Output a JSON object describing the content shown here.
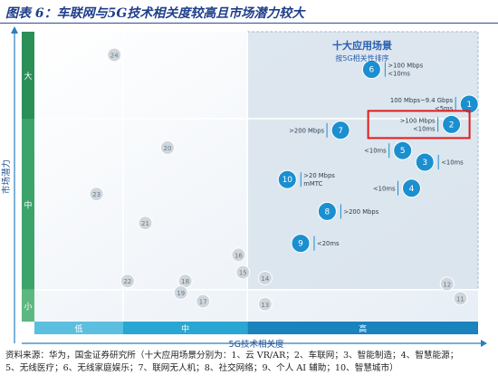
{
  "page": {
    "title": "图表 6：车联网与5G技术相关度较高且市场潜力较大",
    "source_line1": "资料来源：华为，国金证券研究所（十大应用场景分别为：1、云 VR/AR；2、车联网；3、智能制造；4、智慧能源；",
    "source_line2": "5、无线医疗；6、无线家庭娱乐；7、联网无人机；8、社交网络；9、个人 AI 辅助；10、智慧城市）"
  },
  "colors": {
    "bubble": "#1b8fd0",
    "bubble_gray": "#cfd6dc",
    "grid": "#ffffff",
    "axis_band_low": "#5cbfe0",
    "axis_band_mid": "#2aa6d2",
    "axis_band_high": "#1a82bd",
    "y_band_low": "#5cb880",
    "y_band_mid": "#3ca46a",
    "y_band_high": "#2b8f58",
    "highlight_box": "#e31b1b",
    "quadrant_bg": "#d8e3ec"
  },
  "chart_data": {
    "type": "scatter",
    "title": "十大应用场景",
    "subtitle": "按5G相关性排序",
    "xlabel": "5G技术相关度",
    "ylabel": "市场潜力",
    "x_categories": [
      "低",
      "中",
      "高"
    ],
    "y_categories": [
      "小",
      "中",
      "大"
    ],
    "xlim": [
      0,
      10
    ],
    "ylim": [
      0,
      10
    ],
    "highlight_point": "2",
    "points": [
      {
        "id": "1",
        "x": 9.8,
        "y": 7.5,
        "label": "100 Mbps~9.4 Gbps <5ms",
        "top10": true
      },
      {
        "id": "2",
        "x": 9.4,
        "y": 6.8,
        "label": ">100 Mbps <10ms",
        "top10": true
      },
      {
        "id": "3",
        "x": 8.8,
        "y": 5.5,
        "label": "<10ms",
        "top10": true
      },
      {
        "id": "4",
        "x": 8.5,
        "y": 4.6,
        "label": "<10ms",
        "top10": true
      },
      {
        "id": "5",
        "x": 8.3,
        "y": 5.9,
        "label": "<10ms",
        "top10": true
      },
      {
        "id": "6",
        "x": 7.6,
        "y": 8.7,
        "label": ">100 Mbps <10ms",
        "top10": true
      },
      {
        "id": "7",
        "x": 6.9,
        "y": 6.6,
        "label": ">200 Mbps",
        "top10": true
      },
      {
        "id": "8",
        "x": 6.6,
        "y": 3.8,
        "label": ">200 Mbps",
        "top10": true
      },
      {
        "id": "9",
        "x": 6.0,
        "y": 2.7,
        "label": "<20ms",
        "top10": true
      },
      {
        "id": "10",
        "x": 5.7,
        "y": 4.9,
        "label": ">20 Mbps mMTC",
        "top10": true
      },
      {
        "id": "11",
        "x": 9.6,
        "y": 0.8,
        "label": "",
        "top10": false
      },
      {
        "id": "12",
        "x": 9.3,
        "y": 1.3,
        "label": "",
        "top10": false
      },
      {
        "id": "13",
        "x": 5.2,
        "y": 0.6,
        "label": "",
        "top10": false
      },
      {
        "id": "14",
        "x": 5.2,
        "y": 1.5,
        "label": "",
        "top10": false
      },
      {
        "id": "15",
        "x": 4.7,
        "y": 1.7,
        "label": "",
        "top10": false
      },
      {
        "id": "16",
        "x": 4.6,
        "y": 2.3,
        "label": "",
        "top10": false
      },
      {
        "id": "17",
        "x": 3.8,
        "y": 0.7,
        "label": "",
        "top10": false
      },
      {
        "id": "18",
        "x": 3.4,
        "y": 1.4,
        "label": "",
        "top10": false
      },
      {
        "id": "19",
        "x": 3.3,
        "y": 1.0,
        "label": "",
        "top10": false
      },
      {
        "id": "20",
        "x": 3.0,
        "y": 6.0,
        "label": "",
        "top10": false
      },
      {
        "id": "21",
        "x": 2.5,
        "y": 3.4,
        "label": "",
        "top10": false
      },
      {
        "id": "22",
        "x": 2.1,
        "y": 1.4,
        "label": "",
        "top10": false
      },
      {
        "id": "23",
        "x": 1.4,
        "y": 4.4,
        "label": "",
        "top10": false
      },
      {
        "id": "24",
        "x": 1.8,
        "y": 9.2,
        "label": "",
        "top10": false
      }
    ]
  }
}
